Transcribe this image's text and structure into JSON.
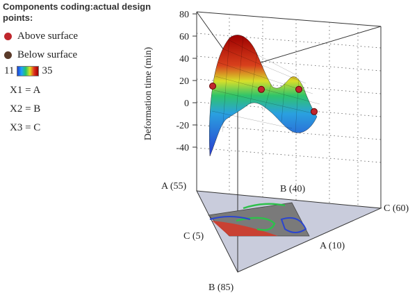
{
  "legend": {
    "title": "Components coding:actual design points:",
    "above_label": "Above surface",
    "below_label": "Below surface",
    "colorbar_min": "11",
    "colorbar_max": "35",
    "mapping": [
      "X1 = A",
      "X2 = B",
      "X3 = C"
    ],
    "colors": {
      "above": "#c0272d",
      "below": "#5a3a2a"
    }
  },
  "chart_data": {
    "type": "surface",
    "zlabel": "Deformation time (min)",
    "z_ticks": [
      80,
      60,
      40,
      20,
      0,
      -20,
      -40
    ],
    "zlim": [
      -40,
      80
    ],
    "colorbar_range": [
      11,
      35
    ],
    "vertex_labels": [
      "A (55)",
      "B (40)",
      "C (60)",
      "C (5)",
      "A (10)",
      "B (85)"
    ],
    "design_points": {
      "above": [
        {
          "z": 15
        },
        {
          "z": 12
        },
        {
          "z": 12
        },
        {
          "z": -8
        }
      ],
      "below": []
    },
    "surface_profile": [
      {
        "t": 0.0,
        "z": -45
      },
      {
        "t": 0.08,
        "z": -10
      },
      {
        "t": 0.18,
        "z": 45
      },
      {
        "t": 0.28,
        "z": 58
      },
      {
        "t": 0.4,
        "z": 40
      },
      {
        "t": 0.52,
        "z": 15
      },
      {
        "t": 0.64,
        "z": 8
      },
      {
        "t": 0.76,
        "z": 18
      },
      {
        "t": 0.88,
        "z": 5
      },
      {
        "t": 1.0,
        "z": -10
      }
    ]
  }
}
